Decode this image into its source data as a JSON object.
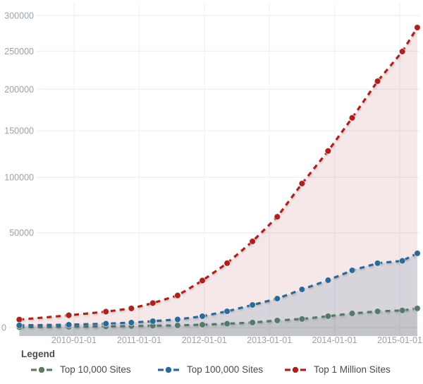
{
  "legend": {
    "title": "Legend"
  },
  "chart_data": {
    "type": "area",
    "title": "",
    "xlabel": "",
    "ylabel": "",
    "ylim": [
      0,
      300000
    ],
    "x_range_years": [
      2009.0,
      2015.35
    ],
    "grid": true,
    "legend_position": "bottom",
    "y_ticks": [
      0,
      50000,
      100000,
      150000,
      200000,
      250000,
      300000
    ],
    "y_tick_labels": [
      "0",
      "50000",
      "100000",
      "150000",
      "200000",
      "250000",
      "300000"
    ],
    "x_tick_years": [
      2010,
      2011,
      2012,
      2013,
      2014,
      2015
    ],
    "x_tick_labels": [
      "2010-01-01",
      "2011-01-01",
      "2012-01-01",
      "2013-01-01",
      "2014-01-01",
      "2015-01-01"
    ],
    "x": [
      2009.16,
      2009.92,
      2010.49,
      2010.88,
      2011.21,
      2011.59,
      2011.97,
      2012.35,
      2012.74,
      2013.12,
      2013.5,
      2013.9,
      2014.27,
      2014.66,
      2015.04,
      2015.27
    ],
    "series": [
      {
        "name": "Top 10,000 Sites",
        "color": "#5d7b61",
        "fill": "rgba(93,123,97,0.16)",
        "values": [
          10,
          30,
          60,
          90,
          130,
          170,
          250,
          400,
          600,
          1000,
          1350,
          2050,
          2850,
          3500,
          3800,
          4500
        ]
      },
      {
        "name": "Top 100,000 Sites",
        "color": "#2e6897",
        "fill": "rgba(46,104,151,0.15)",
        "values": [
          170,
          250,
          410,
          590,
          860,
          1240,
          2040,
          3520,
          5780,
          8400,
          12700,
          17600,
          23400,
          27900,
          29500,
          34600
        ]
      },
      {
        "name": "Top 1 Million Sites",
        "color": "#aa211f",
        "fill": "rgba(170,33,31,0.10)",
        "values": [
          1200,
          2300,
          3400,
          4500,
          6500,
          9800,
          17400,
          27900,
          43300,
          63200,
          93800,
          127400,
          165000,
          210300,
          249500,
          282800
        ]
      }
    ]
  }
}
